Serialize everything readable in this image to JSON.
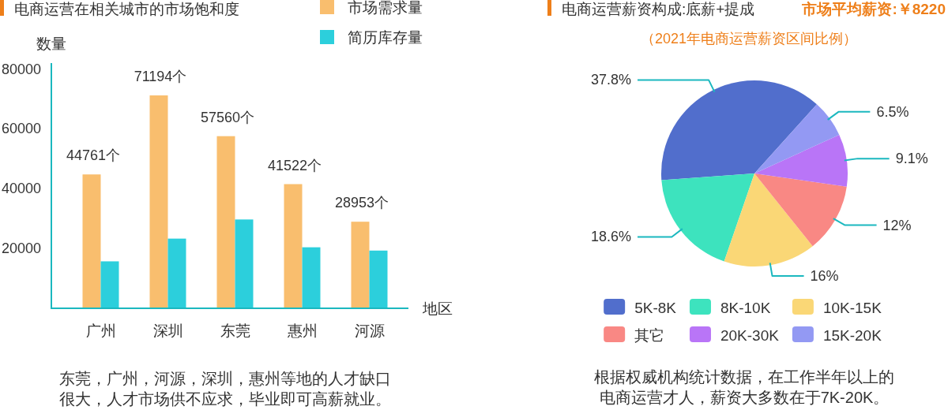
{
  "chart_data": [
    {
      "type": "bar",
      "title": "电商运营在相关城市的市场饱和度",
      "ylabel": "数量",
      "xlabel": "地区",
      "categories": [
        "广州",
        "深圳",
        "东莞",
        "惠州",
        "河源"
      ],
      "series": [
        {
          "name": "市场需求量",
          "color": "#f9be6e",
          "values": [
            44761,
            71194,
            57560,
            41522,
            28953
          ],
          "value_labels": [
            "44761个",
            "71194个",
            "57560个",
            "41522个",
            "28953个"
          ]
        },
        {
          "name": "简历库存量",
          "color": "#2ccfdc",
          "values": [
            15700,
            23300,
            29700,
            20400,
            19300
          ]
        }
      ],
      "ylim": [
        0,
        82000
      ],
      "yticks": [
        20000,
        40000,
        60000,
        80000
      ],
      "legend": "top right",
      "annotations": [
        "东莞，广州，河源，深圳，惠州等地的人才缺口很大，人才市场供不应求，毕业即可高薪就业。"
      ]
    },
    {
      "type": "pie",
      "title": "电商运营薪资构成:底薪+提成",
      "subtitle": "（2021年电商运营薪资区间比例）",
      "categories": [
        "5K-8K",
        "8K-10K",
        "10K-15K",
        "其它",
        "20K-30K",
        "15K-20K"
      ],
      "values": [
        37.8,
        18.6,
        16,
        12,
        9.1,
        6.5
      ],
      "colors": [
        "#516ecc",
        "#3de3be",
        "#fad776",
        "#f98884",
        "#b975f7",
        "#9399f3"
      ],
      "value_labels": [
        "37.8%",
        "18.6%",
        "16%",
        "12%",
        "9.1%",
        "6.5%"
      ],
      "legend": "bottom",
      "annotations": [
        "市场平均薪资:￥8220",
        "根据权威机构统计数据，在工作半年以上的电商运营才人，薪资大多数在于7K-20K。"
      ]
    }
  ]
}
